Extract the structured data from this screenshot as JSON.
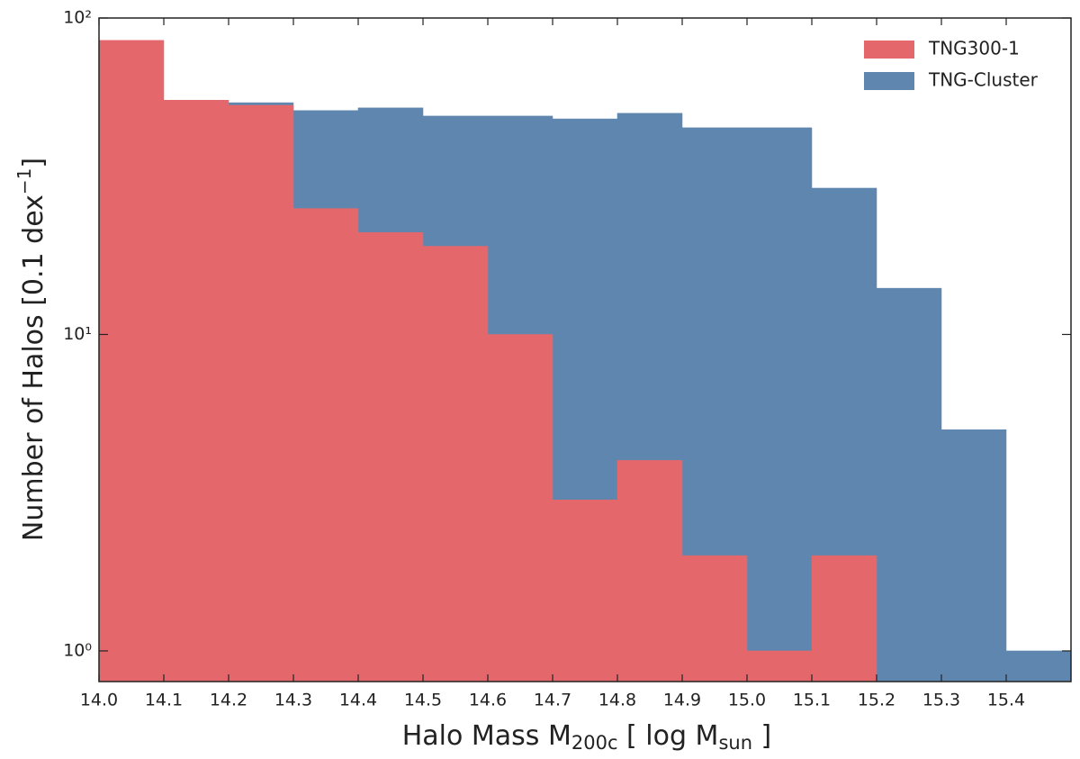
{
  "chart_data": {
    "type": "histogram",
    "xlabel": [
      "Halo Mass M",
      "200c",
      " [ log M",
      "sun",
      " ]"
    ],
    "ylabel": [
      "Number of Halos [0.1 dex",
      "−1",
      "]"
    ],
    "bins": [
      14.0,
      14.1,
      14.2,
      14.3,
      14.4,
      14.5,
      14.6,
      14.7,
      14.8,
      14.9,
      15.0,
      15.1,
      15.2,
      15.3,
      15.4,
      15.5
    ],
    "series": [
      {
        "name": "TNG-Cluster",
        "color": "#5f86ae",
        "values": [
          0,
          0,
          54,
          51,
          52,
          49,
          49,
          48,
          50,
          45,
          45,
          29,
          14,
          5,
          1
        ]
      },
      {
        "name": "TNG300-1",
        "color": "#e4686b",
        "values": [
          85,
          55,
          53,
          25,
          21,
          19,
          10,
          3,
          4,
          2,
          1,
          2,
          0,
          0,
          0
        ]
      }
    ],
    "xlim": [
      14.0,
      15.5
    ],
    "xticks": [
      {
        "value": 14,
        "label": "14.0"
      },
      14.1,
      14.2,
      14.3,
      14.4,
      14.5,
      14.6,
      14.7,
      14.8,
      14.9,
      {
        "value": 15,
        "label": "15.0"
      },
      15.1,
      15.2,
      15.3,
      15.4
    ],
    "ylim": [
      0.8,
      100
    ],
    "yticks": [
      {
        "value": 1,
        "label": "10⁰"
      },
      {
        "value": 10,
        "label": "10¹"
      },
      {
        "value": 100,
        "label": "10²"
      }
    ],
    "yscale": "log",
    "legend": "upper right"
  }
}
